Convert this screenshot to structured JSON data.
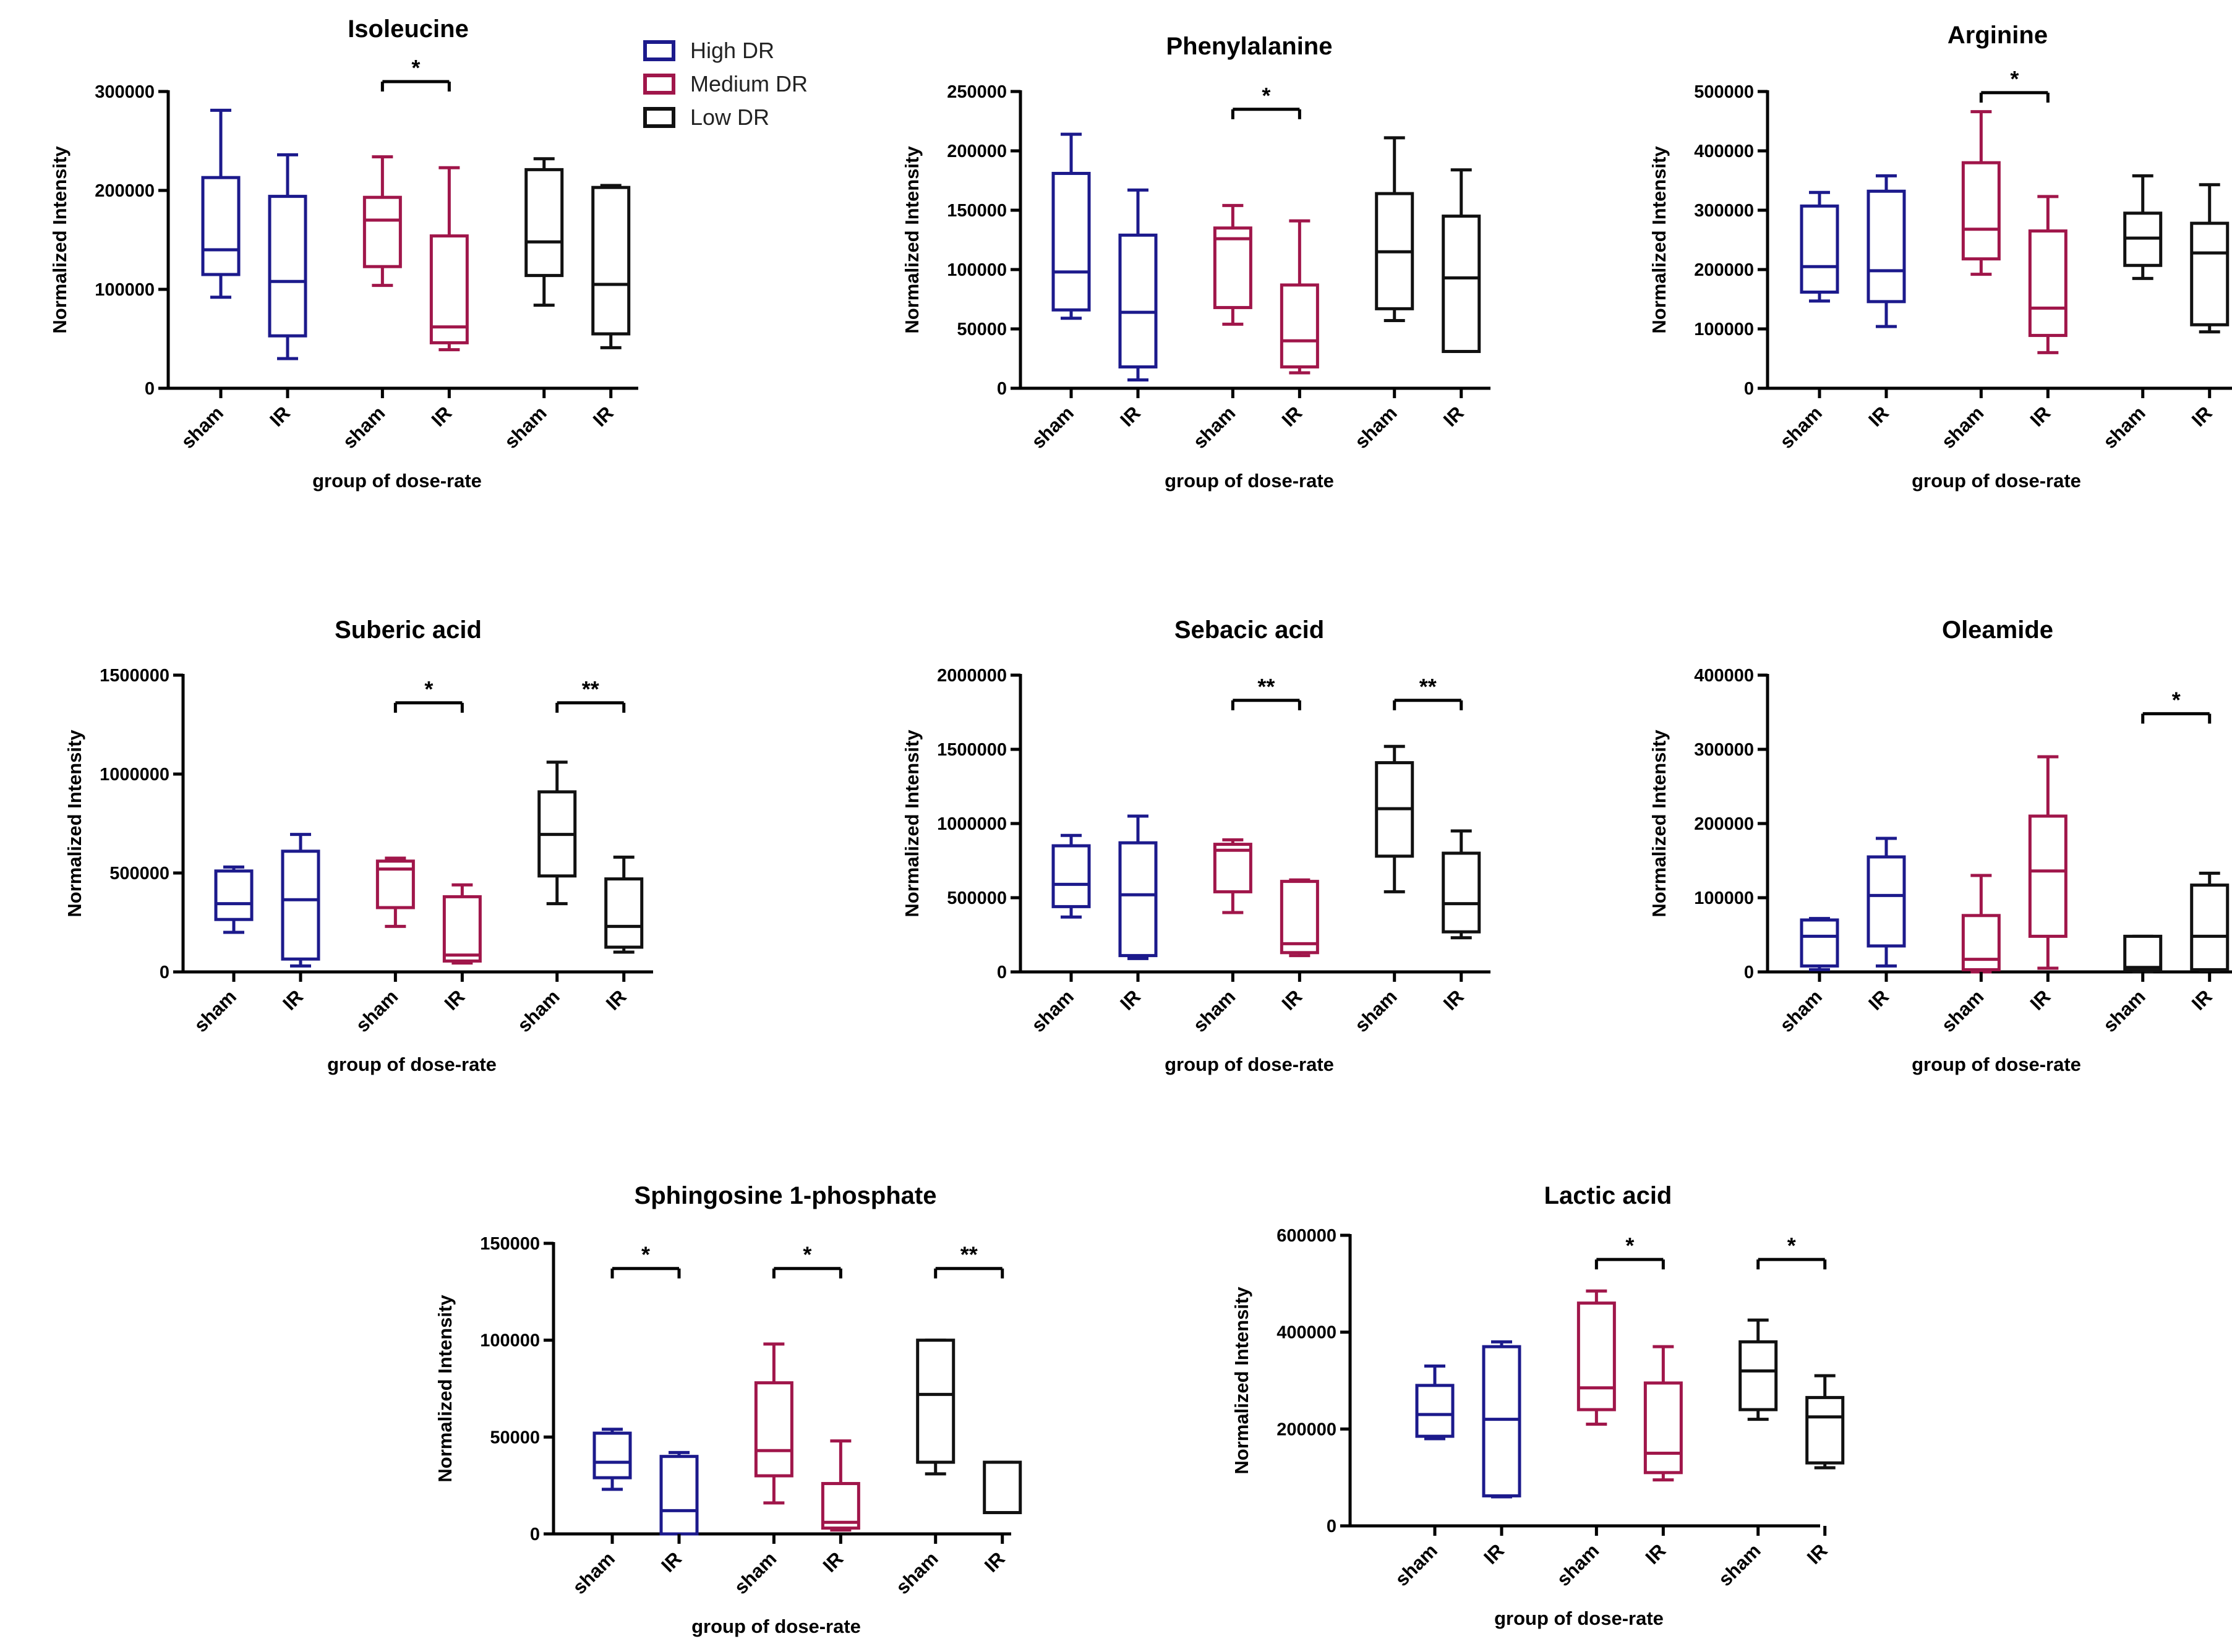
{
  "legend": [
    {
      "label": "High DR",
      "color": "#1c1a8c"
    },
    {
      "label": "Medium DR",
      "color": "#a0164a"
    },
    {
      "label": "Low DR",
      "color": "#111111"
    }
  ],
  "chart_data": [
    {
      "type": "box",
      "title": "Isoleucine",
      "ylabel": "Normalized Intensity",
      "xlabel": "group of dose-rate",
      "ylim": [
        0,
        300000
      ],
      "yticks": [
        0,
        100000,
        200000,
        300000
      ],
      "yticklabels": [
        "0",
        "100000",
        "200000",
        "300000"
      ],
      "categories": [
        "sham",
        "IR",
        "sham",
        "IR",
        "sham",
        "IR"
      ],
      "boxes": [
        {
          "group": "High DR",
          "category": "sham",
          "min": 92000,
          "q1": 115000,
          "median": 140000,
          "q3": 213000,
          "max": 281000
        },
        {
          "group": "High DR",
          "category": "IR",
          "min": 30000,
          "q1": 53000,
          "median": 108000,
          "q3": 194000,
          "max": 236000
        },
        {
          "group": "Medium DR",
          "category": "sham",
          "min": 104000,
          "q1": 123000,
          "median": 170000,
          "q3": 193000,
          "max": 234000
        },
        {
          "group": "Medium DR",
          "category": "IR",
          "min": 39000,
          "q1": 46000,
          "median": 62000,
          "q3": 154000,
          "max": 223000
        },
        {
          "group": "Low DR",
          "category": "sham",
          "min": 84000,
          "q1": 114000,
          "median": 148000,
          "q3": 221000,
          "max": 232000
        },
        {
          "group": "Low DR",
          "category": "IR",
          "min": 41000,
          "q1": 55000,
          "median": 105000,
          "q3": 203000,
          "max": 205000
        }
      ],
      "significance": [
        {
          "from": 2,
          "to": 3,
          "label": "*",
          "y": 310000
        }
      ]
    },
    {
      "type": "box",
      "title": "Phenylalanine",
      "ylabel": "Normalized Intensity",
      "xlabel": "group of dose-rate",
      "ylim": [
        0,
        250000
      ],
      "yticks": [
        0,
        50000,
        100000,
        150000,
        200000,
        250000
      ],
      "yticklabels": [
        "0",
        "50000",
        "100000",
        "150000",
        "200000",
        "250000"
      ],
      "categories": [
        "sham",
        "IR",
        "sham",
        "IR",
        "sham",
        "IR"
      ],
      "boxes": [
        {
          "group": "High DR",
          "category": "sham",
          "min": 59000,
          "q1": 66000,
          "median": 98000,
          "q3": 181000,
          "max": 214000
        },
        {
          "group": "High DR",
          "category": "IR",
          "min": 7000,
          "q1": 18000,
          "median": 64000,
          "q3": 129000,
          "max": 167000
        },
        {
          "group": "Medium DR",
          "category": "sham",
          "min": 54000,
          "q1": 68000,
          "median": 126000,
          "q3": 135000,
          "max": 154000
        },
        {
          "group": "Medium DR",
          "category": "IR",
          "min": 13000,
          "q1": 18000,
          "median": 40000,
          "q3": 87000,
          "max": 141000
        },
        {
          "group": "Low DR",
          "category": "sham",
          "min": 57000,
          "q1": 67000,
          "median": 115000,
          "q3": 164000,
          "max": 211000
        },
        {
          "group": "Low DR",
          "category": "IR",
          "min": 31000,
          "q1": 31000,
          "median": 93000,
          "q3": 145000,
          "max": 184000
        }
      ],
      "significance": [
        {
          "from": 2,
          "to": 3,
          "label": "*",
          "y": 235000
        }
      ]
    },
    {
      "type": "box",
      "title": "Arginine",
      "ylabel": "Normalized Intensity",
      "xlabel": "group of dose-rate",
      "ylim": [
        0,
        500000
      ],
      "yticks": [
        0,
        100000,
        200000,
        300000,
        400000,
        500000
      ],
      "yticklabels": [
        "0",
        "100000",
        "200000",
        "300000",
        "400000",
        "500000"
      ],
      "categories": [
        "sham",
        "IR",
        "sham",
        "IR",
        "sham",
        "IR"
      ],
      "boxes": [
        {
          "group": "High DR",
          "category": "sham",
          "min": 147000,
          "q1": 162000,
          "median": 205000,
          "q3": 307000,
          "max": 330000
        },
        {
          "group": "High DR",
          "category": "IR",
          "min": 104000,
          "q1": 146000,
          "median": 198000,
          "q3": 332000,
          "max": 358000
        },
        {
          "group": "Medium DR",
          "category": "sham",
          "min": 192000,
          "q1": 218000,
          "median": 268000,
          "q3": 380000,
          "max": 466000
        },
        {
          "group": "Medium DR",
          "category": "IR",
          "min": 60000,
          "q1": 89000,
          "median": 135000,
          "q3": 265000,
          "max": 323000
        },
        {
          "group": "Low DR",
          "category": "sham",
          "min": 185000,
          "q1": 207000,
          "median": 253000,
          "q3": 295000,
          "max": 358000
        },
        {
          "group": "Low DR",
          "category": "IR",
          "min": 95000,
          "q1": 107000,
          "median": 228000,
          "q3": 278000,
          "max": 343000
        }
      ],
      "significance": [
        {
          "from": 2,
          "to": 3,
          "label": "*",
          "y": 498000
        }
      ]
    },
    {
      "type": "box",
      "title": "Suberic acid",
      "ylabel": "Normalized Intensity",
      "xlabel": "group of dose-rate",
      "ylim": [
        0,
        1500000
      ],
      "yticks": [
        0,
        500000,
        1000000,
        1500000
      ],
      "yticklabels": [
        "0",
        "500000",
        "1000000",
        "1500000"
      ],
      "categories": [
        "sham",
        "IR",
        "sham",
        "IR",
        "sham",
        "IR"
      ],
      "boxes": [
        {
          "group": "High DR",
          "category": "sham",
          "min": 200000,
          "q1": 265000,
          "median": 345000,
          "q3": 510000,
          "max": 530000
        },
        {
          "group": "High DR",
          "category": "IR",
          "min": 30000,
          "q1": 65000,
          "median": 365000,
          "q3": 610000,
          "max": 695000
        },
        {
          "group": "Medium DR",
          "category": "sham",
          "min": 230000,
          "q1": 325000,
          "median": 520000,
          "q3": 560000,
          "max": 575000
        },
        {
          "group": "Medium DR",
          "category": "IR",
          "min": 45000,
          "q1": 55000,
          "median": 85000,
          "q3": 380000,
          "max": 440000
        },
        {
          "group": "Low DR",
          "category": "sham",
          "min": 345000,
          "q1": 485000,
          "median": 695000,
          "q3": 910000,
          "max": 1060000
        },
        {
          "group": "Low DR",
          "category": "IR",
          "min": 100000,
          "q1": 125000,
          "median": 230000,
          "q3": 470000,
          "max": 580000
        }
      ],
      "significance": [
        {
          "from": 2,
          "to": 3,
          "label": "*",
          "y": 1360000
        },
        {
          "from": 4,
          "to": 5,
          "label": "**",
          "y": 1360000
        }
      ]
    },
    {
      "type": "box",
      "title": "Sebacic acid",
      "ylabel": "Normalized Intensity",
      "xlabel": "group of dose-rate",
      "ylim": [
        0,
        2000000
      ],
      "yticks": [
        0,
        500000,
        1000000,
        1500000,
        2000000
      ],
      "yticklabels": [
        "0",
        "500000",
        "1000000",
        "1500000",
        "2000000"
      ],
      "categories": [
        "sham",
        "IR",
        "sham",
        "IR",
        "sham",
        "IR"
      ],
      "boxes": [
        {
          "group": "High DR",
          "category": "sham",
          "min": 370000,
          "q1": 440000,
          "median": 590000,
          "q3": 850000,
          "max": 920000
        },
        {
          "group": "High DR",
          "category": "IR",
          "min": 90000,
          "q1": 110000,
          "median": 520000,
          "q3": 870000,
          "max": 1050000
        },
        {
          "group": "Medium DR",
          "category": "sham",
          "min": 400000,
          "q1": 540000,
          "median": 820000,
          "q3": 860000,
          "max": 890000
        },
        {
          "group": "Medium DR",
          "category": "IR",
          "min": 110000,
          "q1": 130000,
          "median": 190000,
          "q3": 610000,
          "max": 620000
        },
        {
          "group": "Low DR",
          "category": "sham",
          "min": 540000,
          "q1": 780000,
          "median": 1100000,
          "q3": 1410000,
          "max": 1520000
        },
        {
          "group": "Low DR",
          "category": "IR",
          "min": 230000,
          "q1": 270000,
          "median": 460000,
          "q3": 800000,
          "max": 950000
        }
      ],
      "significance": [
        {
          "from": 2,
          "to": 3,
          "label": "**",
          "y": 1830000
        },
        {
          "from": 4,
          "to": 5,
          "label": "**",
          "y": 1830000
        }
      ]
    },
    {
      "type": "box",
      "title": "Oleamide",
      "ylabel": "Normalized Intensity",
      "xlabel": "group of dose-rate",
      "ylim": [
        0,
        400000
      ],
      "yticks": [
        0,
        100000,
        200000,
        300000,
        400000
      ],
      "yticklabels": [
        "0",
        "100000",
        "200000",
        "300000",
        "400000"
      ],
      "categories": [
        "sham",
        "IR",
        "sham",
        "IR",
        "sham",
        "IR"
      ],
      "boxes": [
        {
          "group": "High DR",
          "category": "sham",
          "min": 3000,
          "q1": 8000,
          "median": 48000,
          "q3": 70000,
          "max": 72000
        },
        {
          "group": "High DR",
          "category": "IR",
          "min": 8000,
          "q1": 35000,
          "median": 103000,
          "q3": 155000,
          "max": 180000
        },
        {
          "group": "Medium DR",
          "category": "sham",
          "min": 0,
          "q1": 3000,
          "median": 17000,
          "q3": 76000,
          "max": 130000
        },
        {
          "group": "Medium DR",
          "category": "IR",
          "min": 5000,
          "q1": 48000,
          "median": 136000,
          "q3": 210000,
          "max": 290000
        },
        {
          "group": "Low DR",
          "category": "sham",
          "min": 0,
          "q1": 2000,
          "median": 6000,
          "q3": 48000,
          "max": 48000
        },
        {
          "group": "Low DR",
          "category": "IR",
          "min": 2000,
          "q1": 3000,
          "median": 48000,
          "q3": 117000,
          "max": 133000
        }
      ],
      "significance": [
        {
          "from": 4,
          "to": 5,
          "label": "*",
          "y": 348000
        }
      ]
    },
    {
      "type": "box",
      "title": "Sphingosine 1-phosphate",
      "ylabel": "Normalized Intensity",
      "xlabel": "group of dose-rate",
      "ylim": [
        0,
        150000
      ],
      "yticks": [
        0,
        50000,
        100000,
        150000
      ],
      "yticklabels": [
        "0",
        "50000",
        "100000",
        "150000"
      ],
      "categories": [
        "sham",
        "IR",
        "sham",
        "IR",
        "sham",
        "IR"
      ],
      "boxes": [
        {
          "group": "High DR",
          "category": "sham",
          "min": 23000,
          "q1": 29000,
          "median": 37000,
          "q3": 52000,
          "max": 54000
        },
        {
          "group": "High DR",
          "category": "IR",
          "min": 0,
          "q1": 0,
          "median": 12000,
          "q3": 40000,
          "max": 42000
        },
        {
          "group": "Medium DR",
          "category": "sham",
          "min": 16000,
          "q1": 30000,
          "median": 43000,
          "q3": 78000,
          "max": 98000
        },
        {
          "group": "Medium DR",
          "category": "IR",
          "min": 2000,
          "q1": 3000,
          "median": 6000,
          "q3": 26000,
          "max": 48000
        },
        {
          "group": "Low DR",
          "category": "sham",
          "min": 31000,
          "q1": 37000,
          "median": 72000,
          "q3": 100000,
          "max": 100000
        },
        {
          "group": "Low DR",
          "category": "IR",
          "min": 11000,
          "q1": 11000,
          "median": 11000,
          "q3": 37000,
          "max": 37000
        }
      ],
      "significance": [
        {
          "from": 0,
          "to": 1,
          "label": "*",
          "y": 137000
        },
        {
          "from": 2,
          "to": 3,
          "label": "*",
          "y": 137000
        },
        {
          "from": 4,
          "to": 5,
          "label": "**",
          "y": 137000
        }
      ]
    },
    {
      "type": "box",
      "title": "Lactic acid",
      "ylabel": "Normalized Intensity",
      "xlabel": "group of dose-rate",
      "ylim": [
        0,
        600000
      ],
      "yticks": [
        0,
        200000,
        400000,
        600000
      ],
      "yticklabels": [
        "0",
        "200000",
        "400000",
        "600000"
      ],
      "categories": [
        "sham",
        "IR",
        "sham",
        "IR",
        "sham",
        "IR"
      ],
      "boxes": [
        {
          "group": "High DR",
          "category": "sham",
          "min": 180000,
          "q1": 185000,
          "median": 230000,
          "q3": 290000,
          "max": 330000
        },
        {
          "group": "High DR",
          "category": "IR",
          "min": 60000,
          "q1": 62000,
          "median": 220000,
          "q3": 370000,
          "max": 380000
        },
        {
          "group": "Medium DR",
          "category": "sham",
          "min": 210000,
          "q1": 240000,
          "median": 285000,
          "q3": 460000,
          "max": 485000
        },
        {
          "group": "Medium DR",
          "category": "IR",
          "min": 95000,
          "q1": 110000,
          "median": 150000,
          "q3": 295000,
          "max": 370000
        },
        {
          "group": "Low DR",
          "category": "sham",
          "min": 220000,
          "q1": 240000,
          "median": 320000,
          "q3": 380000,
          "max": 425000
        },
        {
          "group": "Low DR",
          "category": "IR",
          "min": 120000,
          "q1": 130000,
          "median": 225000,
          "q3": 265000,
          "max": 310000
        }
      ],
      "significance": [
        {
          "from": 2,
          "to": 3,
          "label": "*",
          "y": 550000
        },
        {
          "from": 4,
          "to": 5,
          "label": "*",
          "y": 550000
        }
      ]
    }
  ]
}
